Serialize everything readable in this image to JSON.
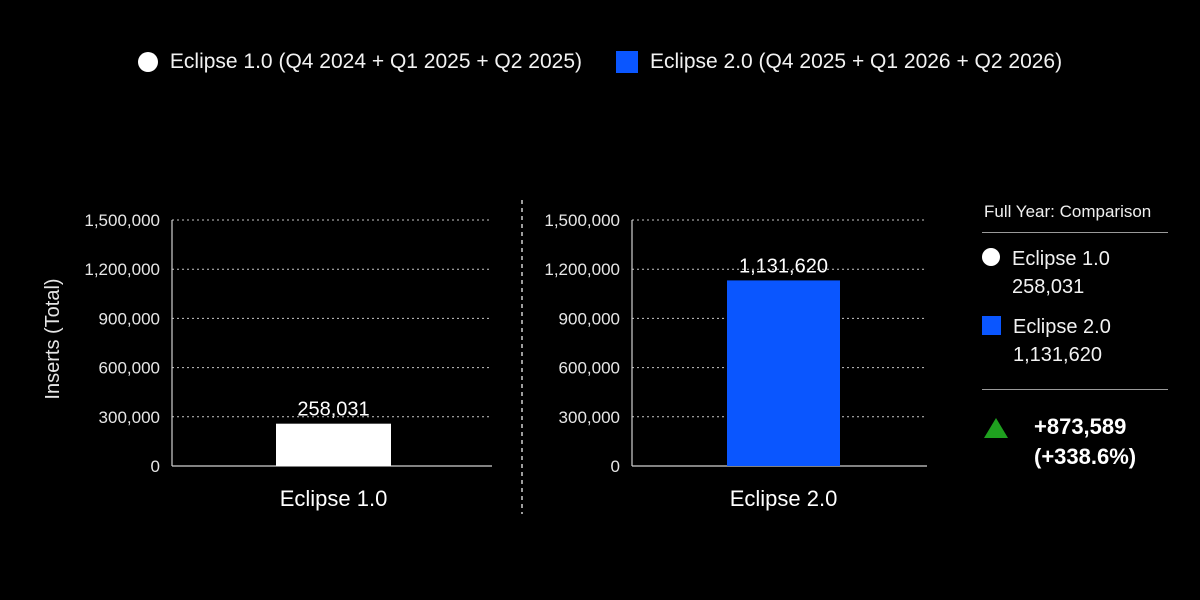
{
  "legend_top": [
    {
      "label": "Eclipse 1.0 (Q4 2024 + Q1 2025 + Q2 2025)",
      "color": "#ffffff",
      "marker": "circle"
    },
    {
      "label": "Eclipse 2.0 (Q4 2025 + Q1 2026 + Q2 2026)",
      "color": "#0a56ff",
      "marker": "square"
    }
  ],
  "chart_data": [
    {
      "type": "bar",
      "categories": [
        "Eclipse 1.0"
      ],
      "values": [
        258031
      ],
      "data_labels": [
        "258,031"
      ],
      "ylabel": "Inserts (Total)",
      "ylim": [
        0,
        1500000
      ],
      "yticks": [
        0,
        300000,
        600000,
        900000,
        1200000,
        1500000
      ],
      "ytick_labels": [
        "0",
        "300,000",
        "600,000",
        "900,000",
        "1,200,000",
        "1,500,000"
      ],
      "grid": "horizontal dotted",
      "color": "#ffffff"
    },
    {
      "type": "bar",
      "categories": [
        "Eclipse 2.0"
      ],
      "values": [
        1131620
      ],
      "data_labels": [
        "1,131,620"
      ],
      "ylim": [
        0,
        1500000
      ],
      "yticks": [
        0,
        300000,
        600000,
        900000,
        1200000,
        1500000
      ],
      "ytick_labels": [
        "0",
        "300,000",
        "600,000",
        "900,000",
        "1,200,000",
        "1,500,000"
      ],
      "grid": "horizontal dotted",
      "color": "#0a56ff"
    }
  ],
  "side_panel": {
    "title": "Full Year: Comparison",
    "entries": [
      {
        "name": "Eclipse 1.0",
        "value": "258,031",
        "color": "#ffffff",
        "marker": "circle"
      },
      {
        "name": "Eclipse 2.0",
        "value": "1,131,620",
        "color": "#0a56ff",
        "marker": "square"
      }
    ],
    "difference": "+873,589",
    "difference_pct": "(+338.6%)",
    "difference_icon": "up-triangle-icon",
    "difference_color": "#1fa01f"
  }
}
